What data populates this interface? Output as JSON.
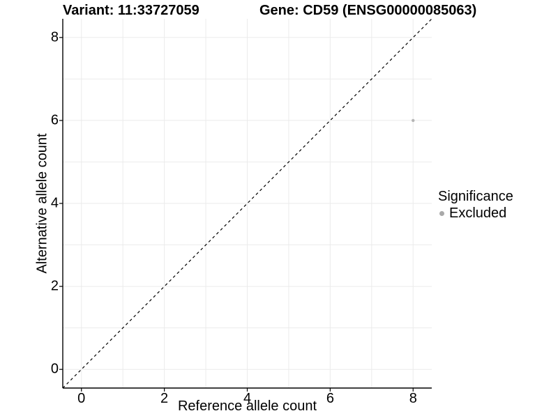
{
  "header": {
    "variant_title": "Variant: 11:33727059",
    "gene_title": "Gene: CD59 (ENSG00000085063)"
  },
  "chart_data": {
    "type": "scatter",
    "title_left": "Variant: 11:33727059",
    "title_right": "Gene: CD59 (ENSG00000085063)",
    "xlabel": "Reference allele count",
    "ylabel": "Alternative allele count",
    "xlim": [
      -0.45,
      8.45
    ],
    "ylim": [
      -0.45,
      8.45
    ],
    "xticks": [
      0,
      2,
      4,
      6,
      8
    ],
    "yticks": [
      0,
      2,
      4,
      6,
      8
    ],
    "grid": {
      "visible": true,
      "step": 1,
      "color": "#ebebeb"
    },
    "identity_line": {
      "style": "dashed",
      "from": [
        -0.45,
        -0.45
      ],
      "to": [
        8.45,
        8.45
      ],
      "color": "#000000"
    },
    "points": [
      {
        "x": 8,
        "y": 6,
        "series": "Excluded",
        "color": "#b5b5b5",
        "radius": 2.2
      }
    ],
    "legend": {
      "title": "Significance",
      "position": "right",
      "entries": [
        {
          "label": "Excluded",
          "color": "#a9a9a9"
        }
      ]
    },
    "colors": {
      "axis": "#000000",
      "background": "#ffffff",
      "text": "#000000"
    }
  }
}
